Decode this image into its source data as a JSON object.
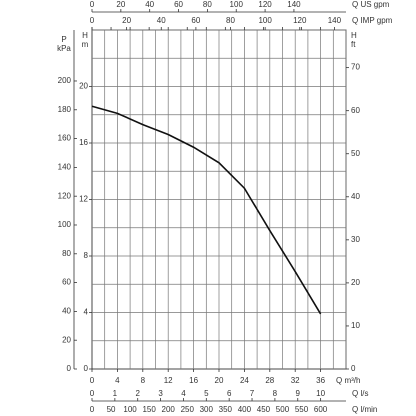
{
  "chart_data": {
    "type": "line",
    "x": [
      0,
      4,
      8,
      12,
      16,
      20,
      24,
      28,
      32,
      36
    ],
    "series": [
      {
        "color": "#111111",
        "values": [
          18.6,
          18.1,
          17.3,
          16.6,
          15.7,
          14.6,
          12.8,
          9.8,
          6.9,
          3.9
        ]
      }
    ],
    "xlabel": "Q m³/h",
    "xlim": [
      0,
      40
    ],
    "xticks": [
      0,
      4,
      8,
      12,
      16,
      20,
      24,
      28,
      32,
      36
    ],
    "xgrid": [
      2,
      4,
      6,
      8,
      10,
      12,
      14,
      16,
      18,
      20,
      22,
      24,
      26,
      28,
      30,
      32,
      34,
      36,
      38,
      40
    ],
    "ylabel": [
      "H",
      "m"
    ],
    "ylim": [
      0,
      24
    ],
    "yticks": [
      0,
      4,
      8,
      12,
      16,
      20
    ],
    "ygrid": [
      2,
      4,
      6,
      8,
      10,
      12,
      14,
      16,
      18,
      20,
      22,
      24
    ],
    "grid": true,
    "y2label": [
      "H",
      "ft"
    ],
    "y2lim": [
      0,
      78.74
    ],
    "y2ticks": [
      0,
      10,
      20,
      30,
      40,
      50,
      60,
      70
    ],
    "p_axis": {
      "label": [
        "P",
        "kPa"
      ],
      "lim": [
        0,
        235.4
      ],
      "ticks": [
        0,
        20,
        40,
        60,
        80,
        100,
        120,
        140,
        160,
        180,
        200
      ]
    },
    "us_gpm_axis": {
      "label": "Q US gpm",
      "lim": [
        0,
        176.1
      ],
      "ticks": [
        0,
        20,
        40,
        60,
        80,
        100,
        120,
        140
      ]
    },
    "imp_gpm_axis": {
      "label": "Q IMP gpm",
      "lim": [
        0,
        146.7
      ],
      "ticks": [
        0,
        20,
        40,
        60,
        80,
        100,
        120,
        140
      ]
    },
    "ls_axis": {
      "label": "Q l/s",
      "lim": [
        0,
        11.11
      ],
      "ticks": [
        0,
        1,
        2,
        3,
        4,
        5,
        6,
        7,
        8,
        9,
        10
      ]
    },
    "lmin_axis": {
      "label": "Q l/min",
      "lim": [
        0,
        666.7
      ],
      "ticks": [
        0,
        50,
        100,
        150,
        200,
        250,
        300,
        350,
        400,
        450,
        500,
        550,
        600
      ]
    }
  }
}
